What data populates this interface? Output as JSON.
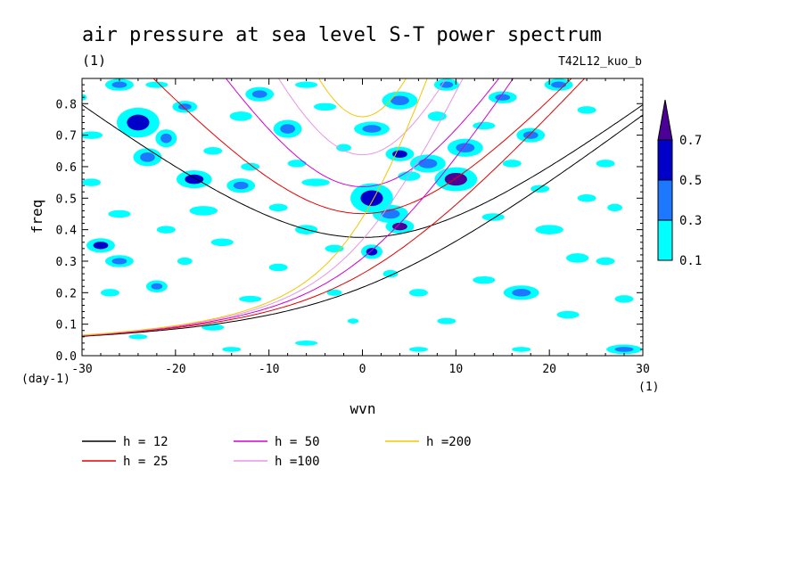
{
  "chart_data": {
    "type": "contour",
    "title": "air pressure at sea level S-T power spectrum",
    "subtitle": "(1)",
    "run_label": "T42L12_kuo_b",
    "xlabel": "wvn",
    "ylabel": "freq",
    "x_unit": "(1)",
    "y_unit": "(day-1)",
    "xlim": [
      -30,
      30
    ],
    "ylim": [
      0,
      0.88
    ],
    "xticks": [
      -30,
      -20,
      -10,
      0,
      10,
      20,
      30
    ],
    "xtick_labels": [
      "-30",
      "-20",
      "-10",
      "0",
      "10",
      "20",
      "30"
    ],
    "yticks": [
      0,
      0.1,
      0.2,
      0.3,
      0.4,
      0.5,
      0.6,
      0.7,
      0.8
    ],
    "ytick_labels": [
      "0.0",
      "0.1",
      "0.2",
      "0.3",
      "0.4",
      "0.5",
      "0.6",
      "0.7",
      "0.8"
    ],
    "colorbar": {
      "levels": [
        "0.1",
        "0.3",
        "0.5",
        "0.7"
      ],
      "colors": [
        "#00ffff",
        "#1e78ff",
        "#0000c8",
        "#4b0096"
      ]
    },
    "dispersion_curves": [
      {
        "label": "h = 12",
        "h": 12,
        "color": "#000000"
      },
      {
        "label": "h = 25",
        "h": 25,
        "color": "#e60000"
      },
      {
        "label": "h = 50",
        "h": 50,
        "color": "#d200d2"
      },
      {
        "label": "h =100",
        "h": 100,
        "color": "#e696e6"
      },
      {
        "label": "h =200",
        "h": 200,
        "color": "#f0c800"
      }
    ],
    "power_blobs": [
      [
        -30,
        0.82,
        0.5,
        0.01,
        0.1
      ],
      [
        -26,
        0.86,
        0.8,
        0.01,
        0.3
      ],
      [
        -24,
        0.74,
        1.2,
        0.025,
        0.5
      ],
      [
        -23,
        0.63,
        0.8,
        0.015,
        0.3
      ],
      [
        -21,
        0.69,
        0.6,
        0.015,
        0.3
      ],
      [
        -19,
        0.79,
        0.7,
        0.01,
        0.3
      ],
      [
        -18,
        0.56,
        1.0,
        0.015,
        0.5
      ],
      [
        -17,
        0.46,
        1.5,
        0.015,
        0.1
      ],
      [
        -16,
        0.65,
        1.0,
        0.012,
        0.1
      ],
      [
        -13,
        0.76,
        1.2,
        0.015,
        0.1
      ],
      [
        -12,
        0.6,
        1.0,
        0.012,
        0.1
      ],
      [
        -11,
        0.83,
        0.8,
        0.012,
        0.3
      ],
      [
        -8,
        0.72,
        0.8,
        0.015,
        0.3
      ],
      [
        -5,
        0.55,
        1.5,
        0.012,
        0.1
      ],
      [
        -4,
        0.79,
        1.2,
        0.012,
        0.1
      ],
      [
        -2,
        0.66,
        0.8,
        0.012,
        0.1
      ],
      [
        1,
        0.5,
        1.2,
        0.025,
        0.5
      ],
      [
        1,
        0.33,
        0.6,
        0.012,
        0.5
      ],
      [
        1,
        0.72,
        1.0,
        0.012,
        0.3
      ],
      [
        3,
        0.45,
        1.0,
        0.015,
        0.3
      ],
      [
        4,
        0.41,
        0.8,
        0.012,
        0.7
      ],
      [
        4,
        0.81,
        1.0,
        0.015,
        0.3
      ],
      [
        4,
        0.64,
        0.8,
        0.012,
        0.5
      ],
      [
        5,
        0.57,
        1.2,
        0.015,
        0.1
      ],
      [
        7,
        0.61,
        1.0,
        0.015,
        0.3
      ],
      [
        8,
        0.76,
        1.0,
        0.015,
        0.1
      ],
      [
        9,
        0.86,
        0.7,
        0.01,
        0.3
      ],
      [
        10,
        0.56,
        1.2,
        0.02,
        0.7
      ],
      [
        11,
        0.66,
        1.0,
        0.015,
        0.3
      ],
      [
        13,
        0.73,
        1.2,
        0.012,
        0.1
      ],
      [
        15,
        0.82,
        0.8,
        0.01,
        0.3
      ],
      [
        16,
        0.61,
        1.0,
        0.012,
        0.1
      ],
      [
        18,
        0.7,
        0.8,
        0.012,
        0.3
      ],
      [
        19,
        0.53,
        1.0,
        0.012,
        0.1
      ],
      [
        20,
        0.4,
        1.5,
        0.015,
        0.1
      ],
      [
        21,
        0.86,
        0.8,
        0.01,
        0.3
      ],
      [
        23,
        0.31,
        1.2,
        0.015,
        0.1
      ],
      [
        24,
        0.78,
        1.0,
        0.012,
        0.1
      ],
      [
        26,
        0.61,
        1.0,
        0.012,
        0.1
      ],
      [
        27,
        0.47,
        0.8,
        0.012,
        0.1
      ],
      [
        28,
        0.18,
        1.0,
        0.012,
        0.1
      ],
      [
        28,
        0.02,
        1.0,
        0.008,
        0.3
      ],
      [
        -28,
        0.35,
        0.8,
        0.012,
        0.5
      ],
      [
        -27,
        0.2,
        1.0,
        0.012,
        0.1
      ],
      [
        -26,
        0.3,
        0.8,
        0.01,
        0.3
      ],
      [
        -22,
        0.22,
        0.6,
        0.01,
        0.3
      ],
      [
        -19,
        0.3,
        0.8,
        0.012,
        0.1
      ],
      [
        -15,
        0.36,
        1.2,
        0.012,
        0.1
      ],
      [
        -12,
        0.18,
        1.2,
        0.01,
        0.1
      ],
      [
        -9,
        0.28,
        1.0,
        0.012,
        0.1
      ],
      [
        -6,
        0.4,
        1.2,
        0.015,
        0.1
      ],
      [
        -3,
        0.2,
        0.8,
        0.01,
        0.1
      ],
      [
        -1,
        0.11,
        0.6,
        0.008,
        0.1
      ],
      [
        -16,
        0.09,
        1.2,
        0.01,
        0.1
      ],
      [
        -24,
        0.06,
        1.0,
        0.008,
        0.1
      ],
      [
        -6,
        0.04,
        1.2,
        0.008,
        0.1
      ],
      [
        6,
        0.2,
        1.0,
        0.012,
        0.1
      ],
      [
        9,
        0.11,
        1.0,
        0.01,
        0.1
      ],
      [
        13,
        0.24,
        1.2,
        0.012,
        0.1
      ],
      [
        17,
        0.2,
        1.0,
        0.012,
        0.3
      ],
      [
        22,
        0.13,
        1.2,
        0.012,
        0.1
      ],
      [
        26,
        0.3,
        1.0,
        0.012,
        0.1
      ],
      [
        -29,
        0.55,
        1.0,
        0.012,
        0.1
      ],
      [
        -26,
        0.45,
        1.2,
        0.012,
        0.1
      ],
      [
        -21,
        0.4,
        1.0,
        0.012,
        0.1
      ],
      [
        -9,
        0.47,
        1.0,
        0.012,
        0.1
      ],
      [
        -7,
        0.61,
        1.0,
        0.012,
        0.1
      ],
      [
        14,
        0.44,
        1.2,
        0.012,
        0.1
      ],
      [
        24,
        0.5,
        1.0,
        0.012,
        0.1
      ],
      [
        -13,
        0.54,
        0.8,
        0.012,
        0.3
      ],
      [
        -29,
        0.7,
        1.2,
        0.012,
        0.1
      ],
      [
        -22,
        0.86,
        1.2,
        0.01,
        0.1
      ],
      [
        -6,
        0.86,
        1.2,
        0.01,
        0.1
      ],
      [
        3,
        0.26,
        0.8,
        0.012,
        0.1
      ],
      [
        -3,
        0.34,
        1.0,
        0.012,
        0.1
      ],
      [
        17,
        0.02,
        1.0,
        0.008,
        0.1
      ],
      [
        6,
        0.02,
        1.0,
        0.008,
        0.1
      ],
      [
        -14,
        0.02,
        1.0,
        0.008,
        0.1
      ]
    ]
  },
  "legend_entries": [
    "h = 12",
    "h = 25",
    "h = 50",
    "h =100",
    "h =200"
  ]
}
